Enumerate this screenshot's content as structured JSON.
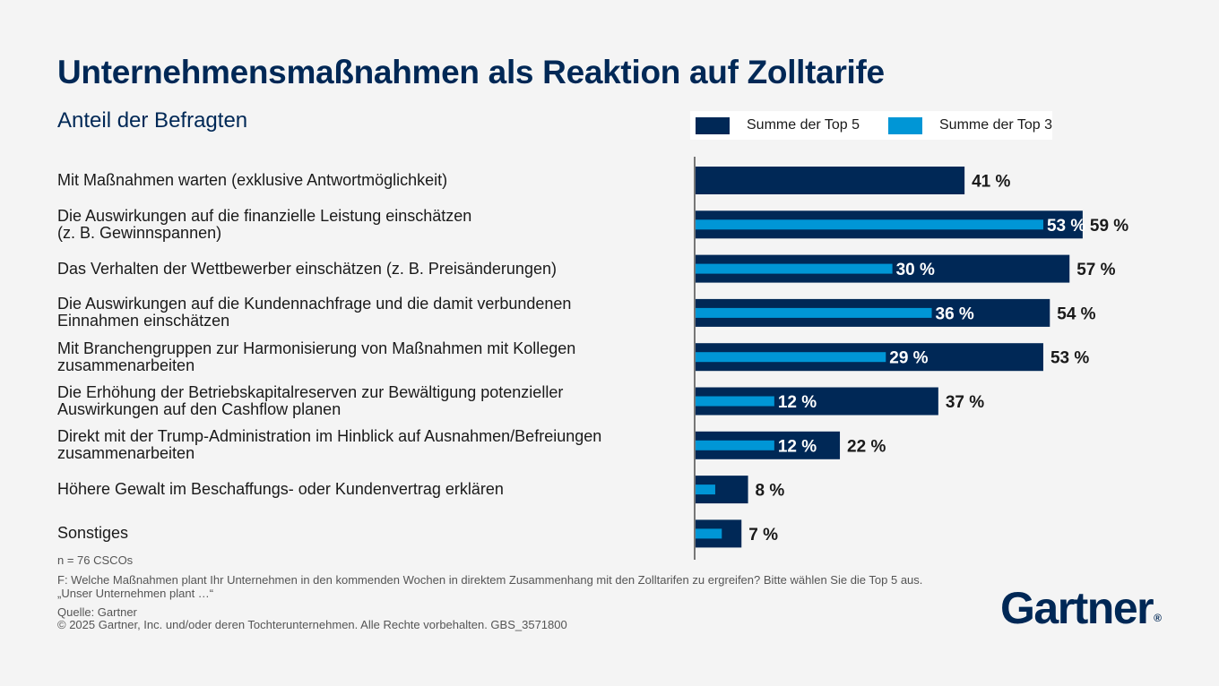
{
  "chart_data": {
    "type": "bar",
    "orientation": "horizontal",
    "title": "Unternehmensmaßnahmen als Reaktion auf Zolltarife",
    "subtitle": "Anteil der Befragten",
    "categories": [
      "Mit Maßnahmen warten (exklusive Antwortmöglichkeit)",
      "Die Auswirkungen auf die finanzielle Leistung einschätzen\n(z. B. Gewinnspannen)",
      "Das Verhalten der Wettbewerber einschätzen (z. B. Preisänderungen)",
      "Die Auswirkungen auf die Kundennachfrage und die damit verbundenen\nEinnahmen einschätzen",
      "Mit Branchengruppen zur Harmonisierung von Maßnahmen mit Kollegen\nzusammenarbeiten",
      "Die Erhöhung der Betriebskapitalreserven zur Bewältigung potenzieller\nAuswirkungen auf den Cashflow planen",
      "Direkt mit der Trump-Administration im Hinblick auf Ausnahmen/Befreiungen\nzusammenarbeiten",
      "Höhere Gewalt im Beschaffungs- oder Kundenvertrag erklären",
      "Sonstiges"
    ],
    "series": [
      {
        "name": "Summe der Top 5",
        "color": "#002856",
        "values": [
          41,
          59,
          57,
          54,
          53,
          37,
          22,
          8,
          7
        ],
        "labels": [
          "41 %",
          "59 %",
          "57 %",
          "54 %",
          "53 %",
          "37 %",
          "22 %",
          "8 %",
          "7 %"
        ]
      },
      {
        "name": "Summe der Top 3",
        "color": "#0096d6",
        "values": [
          null,
          53,
          30,
          36,
          29,
          12,
          12,
          3,
          4
        ],
        "labels": [
          "",
          "53 %",
          "30 %",
          "36 %",
          "29 %",
          "12 %",
          "12 %",
          "",
          ""
        ]
      }
    ],
    "xlim": [
      0,
      100
    ],
    "grid": false,
    "legend": "top-right"
  },
  "footnotes": {
    "n": "n = 76 CSCOs",
    "question_line1": "F: Welche Maßnahmen plant Ihr Unternehmen in den kommenden Wochen in direktem Zusammenhang mit den Zolltarifen zu ergreifen? Bitte wählen Sie die Top 5 aus.",
    "question_line2": "„Unser Unternehmen plant …“",
    "source": "Quelle: Gartner",
    "copyright": "© 2025 Gartner, Inc. und/oder deren Tochterunternehmen. Alle Rechte vorbehalten. GBS_3571800"
  },
  "brand": {
    "logo_text": "Gartner",
    "logo_mark": "®"
  }
}
